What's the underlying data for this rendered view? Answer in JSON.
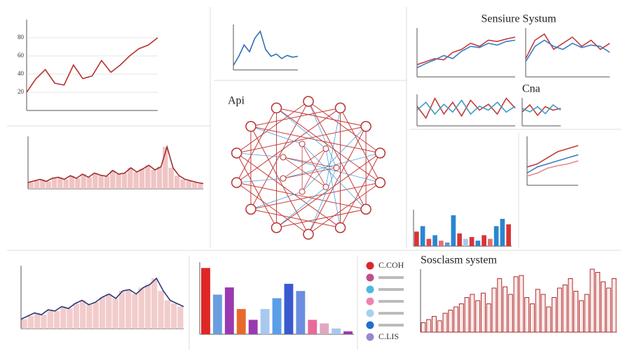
{
  "chart_data": [
    {
      "type": "line",
      "ylim": [
        0,
        100
      ],
      "yticks": [
        20,
        40,
        60,
        80
      ],
      "grid": true,
      "series": [
        {
          "color": "#b8322f",
          "values": [
            20,
            35,
            45,
            30,
            28,
            50,
            35,
            38,
            55,
            42,
            50,
            60,
            68,
            72,
            80
          ]
        }
      ]
    },
    {
      "type": "area",
      "ylim": [
        0,
        100
      ],
      "color": "#f0c4c4",
      "line_color": "#9c2f2f",
      "values": [
        12,
        15,
        18,
        14,
        20,
        22,
        18,
        25,
        20,
        28,
        22,
        30,
        26,
        24,
        35,
        28,
        30,
        40,
        32,
        38,
        45,
        36,
        42,
        80,
        40,
        25,
        18,
        15,
        12,
        10
      ]
    },
    {
      "type": "line",
      "ylim": [
        0,
        100
      ],
      "series": [
        {
          "color": "#2f6fb3",
          "values": [
            10,
            30,
            55,
            40,
            70,
            85,
            45,
            30,
            35,
            25,
            32,
            28,
            30
          ]
        }
      ]
    },
    {
      "type": "network",
      "title": "Api"
    },
    {
      "type": "line",
      "ylim": [
        0,
        80
      ],
      "grid": true,
      "title": "Sensiure Systum",
      "series": [
        {
          "color": "#c43b3b",
          "values": [
            20,
            25,
            30,
            28,
            40,
            45,
            55,
            50,
            60,
            58,
            62,
            65
          ]
        },
        {
          "color": "#3a7fc4",
          "values": [
            15,
            22,
            28,
            35,
            30,
            42,
            50,
            48,
            55,
            52,
            58,
            60
          ]
        }
      ]
    },
    {
      "type": "line",
      "ylim": [
        0,
        80
      ],
      "grid": true,
      "series": [
        {
          "color": "#c43b3b",
          "values": [
            30,
            60,
            70,
            45,
            55,
            65,
            50,
            60,
            45,
            55
          ]
        },
        {
          "color": "#3a7fc4",
          "values": [
            25,
            50,
            60,
            50,
            45,
            55,
            48,
            52,
            50,
            40
          ]
        }
      ]
    },
    {
      "type": "line",
      "ylim": [
        0,
        80
      ],
      "series": [
        {
          "color": "#c43b3b",
          "values": [
            50,
            20,
            70,
            30,
            60,
            25,
            65,
            40,
            55,
            30,
            70,
            45
          ]
        },
        {
          "color": "#3aa0c4",
          "values": [
            40,
            60,
            30,
            55,
            35,
            65,
            30,
            50,
            40,
            60,
            35,
            50
          ]
        }
      ]
    },
    {
      "type": "line",
      "ylim": [
        0,
        80
      ],
      "title": "Cna",
      "series": [
        {
          "color": "#c43b3b",
          "values": [
            40,
            60,
            30,
            55,
            45,
            50
          ]
        },
        {
          "color": "#3aa0c4",
          "values": [
            50,
            40,
            55,
            35,
            60,
            45
          ]
        }
      ]
    },
    {
      "type": "bar",
      "ylim": [
        0,
        100
      ],
      "values": [
        40,
        55,
        20,
        30,
        15,
        10,
        85,
        35,
        20,
        25,
        15,
        30,
        20,
        55,
        75,
        60
      ],
      "colors": [
        "#d93434",
        "#2a86d1",
        "#e0464a",
        "#2a86d1",
        "#e07070",
        "#6b8fd1",
        "#2a86d1",
        "#d93434",
        "#a8c8e8",
        "#d93434",
        "#2a86d1",
        "#d93434",
        "#e07070",
        "#2a86d1",
        "#2a86d1",
        "#d93434"
      ]
    },
    {
      "type": "line",
      "ylim": [
        0,
        80
      ],
      "series": [
        {
          "color": "#c43b3b",
          "values": [
            30,
            35,
            45,
            55,
            60,
            65
          ]
        },
        {
          "color": "#3a7fc4",
          "values": [
            20,
            30,
            35,
            40,
            45,
            50
          ]
        },
        {
          "color": "#e58a8a",
          "values": [
            15,
            20,
            28,
            32,
            35,
            40
          ]
        }
      ]
    },
    {
      "type": "area",
      "ylim": [
        0,
        100
      ],
      "color": "#f2cccc",
      "line_color": "#2b3a78",
      "values": [
        15,
        20,
        25,
        22,
        30,
        28,
        35,
        32,
        40,
        45,
        38,
        42,
        50,
        55,
        48,
        60,
        62,
        55,
        65,
        70,
        80,
        60,
        45,
        40,
        35
      ]
    },
    {
      "type": "bar",
      "ylim": [
        0,
        100
      ],
      "values": [
        92,
        55,
        65,
        35,
        20,
        35,
        50,
        70,
        60,
        20,
        15,
        8,
        4
      ],
      "colors": [
        "#e02626",
        "#6a9ee0",
        "#9a3ab0",
        "#e86a2a",
        "#9a3ab0",
        "#a8c8f0",
        "#5a9ee8",
        "#3a5ad0",
        "#6a8ee0",
        "#e86a9a",
        "#e0a8c0",
        "#a8c8f0",
        "#9a3ab0"
      ]
    },
    {
      "type": "legend",
      "labels": [
        "C.COH",
        null,
        null,
        null,
        null,
        null,
        "C.LIS"
      ],
      "colors": [
        "#d9262e",
        "#c0508a",
        "#4ab8e8",
        "#e886b0",
        "#a8d0f0",
        "#1e6fd0",
        "#9a86d0"
      ]
    },
    {
      "type": "bar",
      "ylim": [
        0,
        100
      ],
      "outline": "#b02a2a",
      "color": "#fbeaea",
      "title": "Sosclasm system",
      "grid": true,
      "values": [
        15,
        20,
        25,
        18,
        30,
        35,
        40,
        45,
        55,
        60,
        50,
        62,
        45,
        70,
        85,
        72,
        60,
        88,
        90,
        55,
        45,
        68,
        60,
        40,
        55,
        70,
        75,
        85,
        65,
        50,
        60,
        100,
        95,
        80,
        70,
        85
      ]
    }
  ]
}
